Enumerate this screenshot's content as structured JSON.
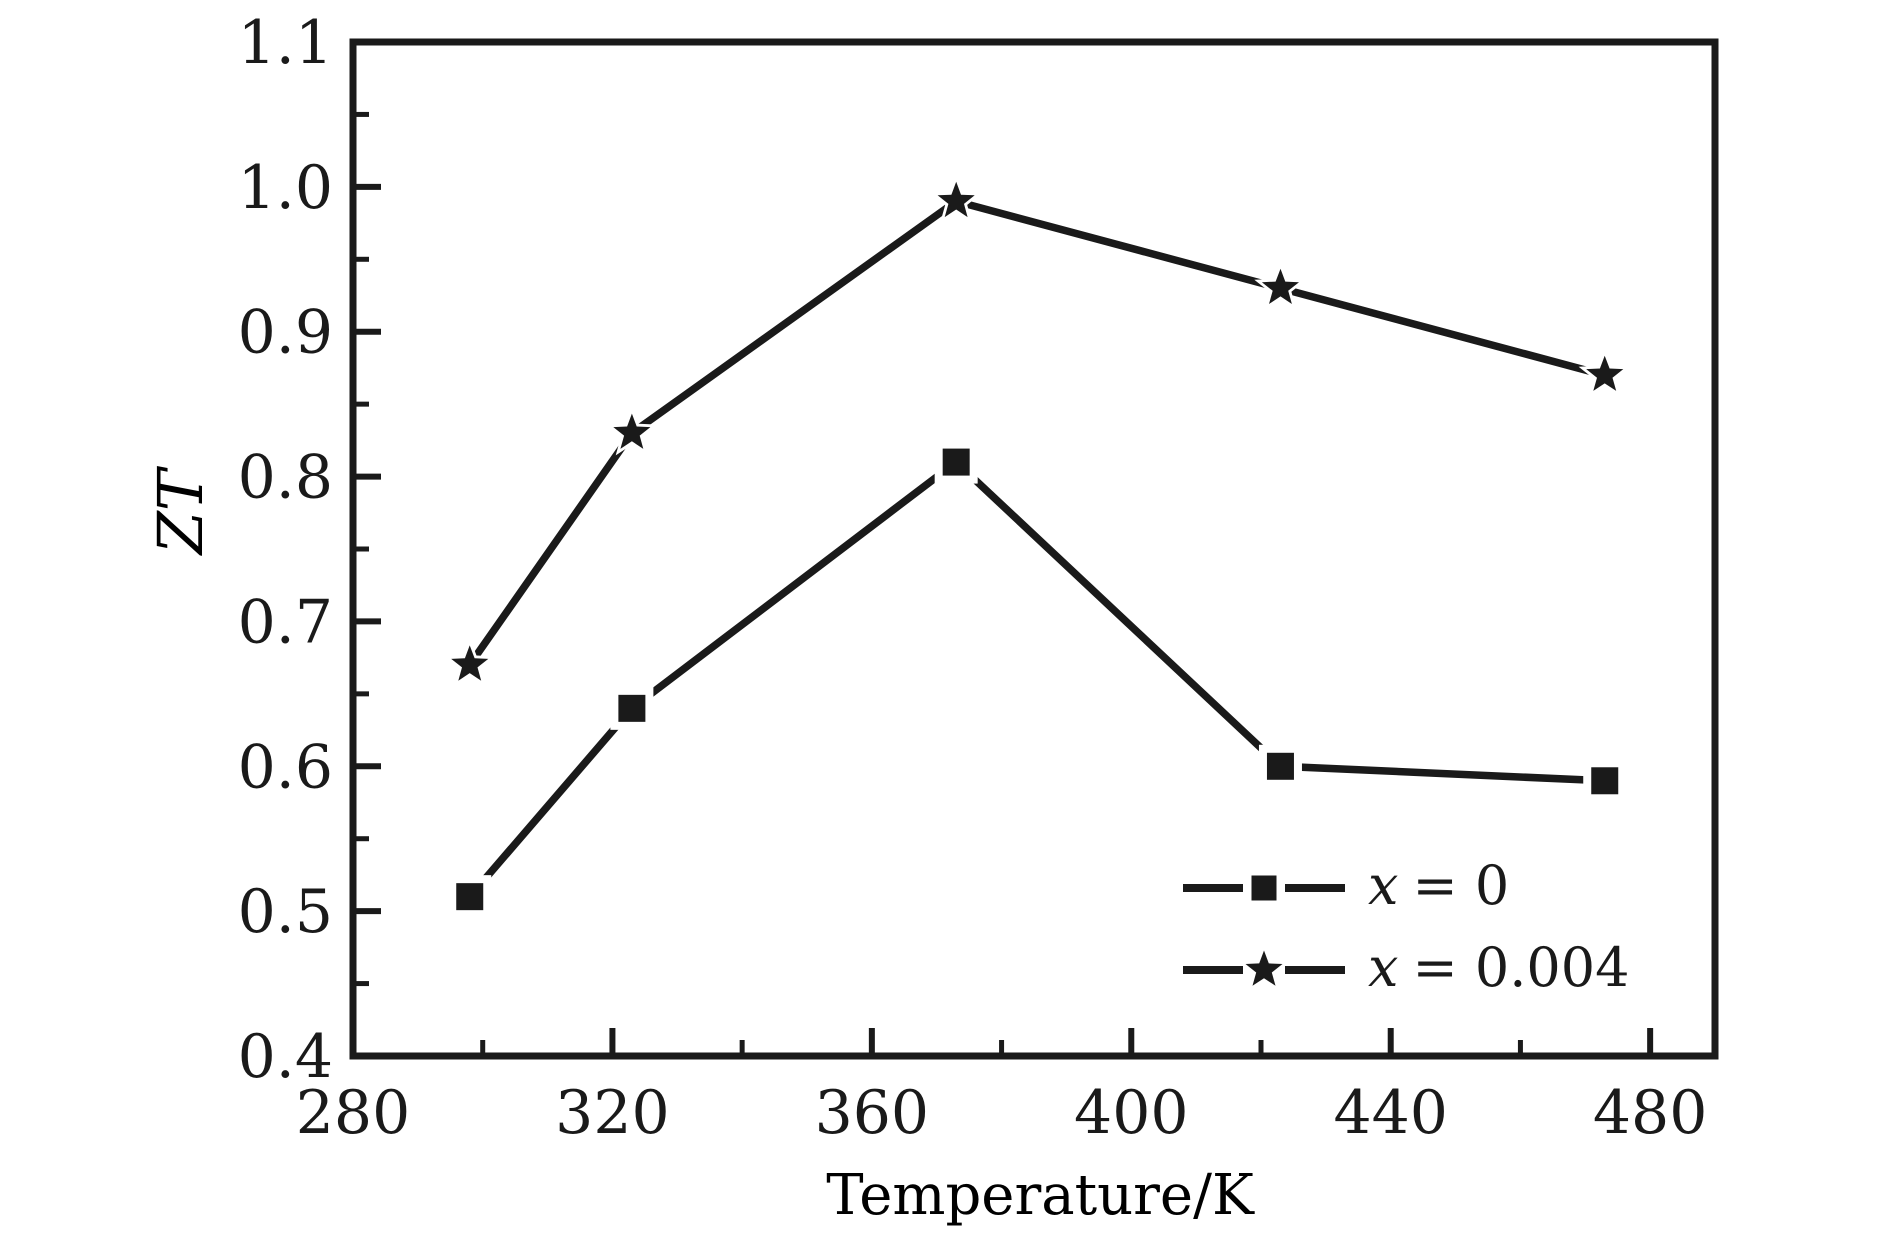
{
  "figure": {
    "background": "#ffffff",
    "ink": "#1a1a1a"
  },
  "chart_data": {
    "type": "line",
    "title": "",
    "xlabel": "Temperature/K",
    "ylabel": "ZT",
    "xlim": [
      280,
      490
    ],
    "ylim": [
      0.4,
      1.1
    ],
    "x_major_ticks": [
      280,
      320,
      360,
      400,
      440,
      480
    ],
    "x_minor_ticks": [
      300,
      340,
      380,
      420,
      460
    ],
    "y_major_ticks": [
      0.4,
      0.5,
      0.6,
      0.7,
      0.8,
      0.9,
      1.0,
      1.1
    ],
    "y_minor_ticks": [
      0.45,
      0.55,
      0.65,
      0.75,
      0.85,
      0.95,
      1.05
    ],
    "grid": false,
    "legend_position": "lower right",
    "series": [
      {
        "name": "x = 0",
        "marker": "square",
        "x": [
          298,
          323,
          373,
          423,
          473
        ],
        "y": [
          0.51,
          0.64,
          0.81,
          0.6,
          0.59
        ]
      },
      {
        "name": "x = 0.004",
        "marker": "star",
        "x": [
          298,
          323,
          373,
          423,
          473
        ],
        "y": [
          0.67,
          0.83,
          0.99,
          0.93,
          0.87
        ]
      }
    ]
  }
}
